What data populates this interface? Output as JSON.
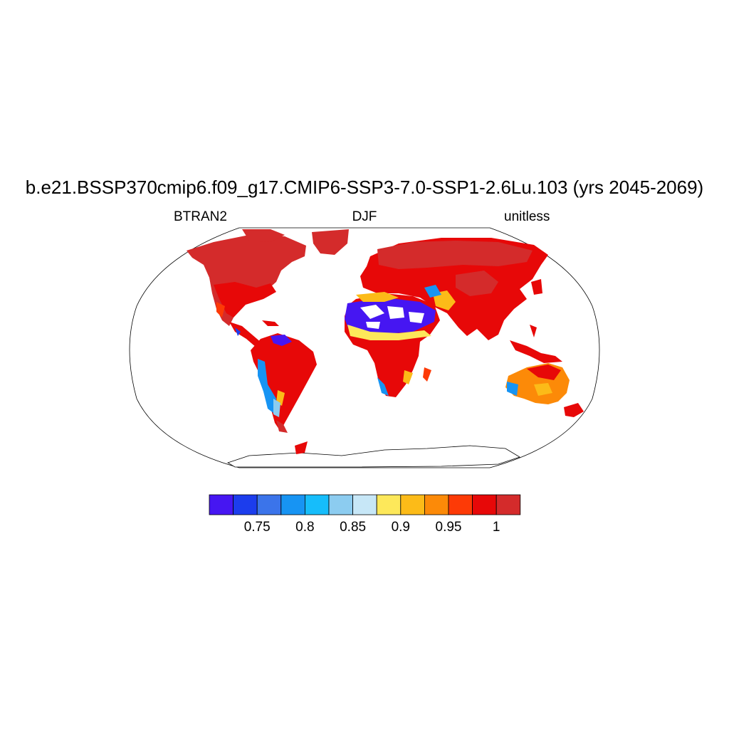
{
  "title": "b.e21.BSSP370cmip6.f09_g17.CMIP6-SSP3-7.0-SSP1-2.6Lu.103 (yrs 2045-2069)",
  "subtitles": {
    "left": "BTRAN2",
    "center": "DJF",
    "right": "unitless"
  },
  "colorbar": {
    "colors": [
      "#4616f2",
      "#1c3ded",
      "#3b74ea",
      "#1794f3",
      "#16bdfb",
      "#8cccf0",
      "#c7e7f7",
      "#fde85a",
      "#fcbb18",
      "#fc8a08",
      "#fd3a06",
      "#e70808",
      "#d42b2b"
    ],
    "labels": [
      "0.75",
      "0.8",
      "0.85",
      "0.9",
      "0.95",
      "1"
    ]
  },
  "map_data": {
    "projection": "robinson",
    "variable": "BTRAN2",
    "season": "DJF"
  }
}
